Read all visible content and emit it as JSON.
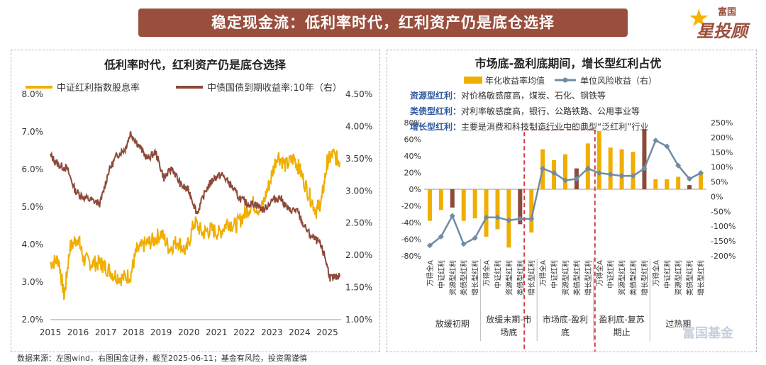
{
  "banner": {
    "title": "稳定现金流：低利率时代，红利资产仍是底仓选择"
  },
  "logo": {
    "line1": "富国",
    "line2": "星投顾"
  },
  "watermark": "富国基金",
  "footer": "数据来源：左图wind，右图国金证券，截至2025-06-11；基金有风险，投资需谨慎",
  "colors": {
    "gold": "#f0ae00",
    "brown": "#8c4a3a",
    "steel": "#6f8ca6",
    "banner": "#9a4f3e",
    "dash": "#d04040"
  },
  "chart_data": [
    {
      "type": "line",
      "title": "低利率时代，红利资产仍是底仓选择",
      "series": [
        {
          "name": "中证红利指数股息率",
          "axis": "left",
          "x": [
            2015.0,
            2015.3,
            2015.5,
            2015.7,
            2016.0,
            2016.2,
            2016.5,
            2016.8,
            2017.0,
            2017.3,
            2017.6,
            2017.9,
            2018.1,
            2018.4,
            2018.7,
            2019.0,
            2019.3,
            2019.6,
            2019.9,
            2020.2,
            2020.5,
            2020.8,
            2021.1,
            2021.4,
            2021.7,
            2022.0,
            2022.3,
            2022.6,
            2022.9,
            2023.2,
            2023.5,
            2023.8,
            2024.0,
            2024.3,
            2024.6,
            2024.8,
            2025.0,
            2025.2,
            2025.45
          ],
          "values": [
            3.5,
            3.6,
            2.6,
            3.9,
            4.2,
            3.6,
            3.5,
            3.5,
            3.4,
            3.2,
            3.1,
            3.2,
            3.8,
            4.0,
            4.1,
            4.3,
            3.9,
            4.1,
            3.8,
            4.6,
            4.3,
            4.4,
            4.3,
            4.6,
            4.5,
            4.8,
            5.1,
            4.9,
            5.6,
            6.4,
            6.1,
            6.3,
            6.0,
            5.4,
            4.9,
            5.2,
            6.2,
            6.4,
            6.2
          ]
        },
        {
          "name": "中债国债到期收益率:10年（右）",
          "axis": "right",
          "x": [
            2015.0,
            2015.3,
            2015.6,
            2015.9,
            2016.2,
            2016.5,
            2016.8,
            2017.1,
            2017.4,
            2017.7,
            2017.9,
            2018.2,
            2018.5,
            2018.8,
            2019.1,
            2019.4,
            2019.7,
            2020.0,
            2020.3,
            2020.6,
            2020.9,
            2021.2,
            2021.5,
            2021.8,
            2022.1,
            2022.4,
            2022.7,
            2023.0,
            2023.3,
            2023.6,
            2023.9,
            2024.1,
            2024.4,
            2024.7,
            2024.9,
            2025.1,
            2025.3,
            2025.45
          ],
          "values": [
            3.55,
            3.4,
            3.35,
            3.0,
            2.9,
            2.85,
            2.8,
            3.3,
            3.55,
            3.65,
            3.9,
            3.7,
            3.5,
            3.6,
            3.2,
            3.35,
            3.1,
            3.0,
            2.65,
            3.0,
            3.2,
            3.25,
            3.1,
            2.9,
            2.8,
            2.8,
            2.7,
            2.85,
            2.9,
            2.7,
            2.7,
            2.5,
            2.3,
            2.2,
            2.0,
            1.65,
            1.65,
            1.7
          ]
        }
      ],
      "x_ticks": [
        "2015",
        "2016",
        "2017",
        "2018",
        "2019",
        "2020",
        "2021",
        "2022",
        "2023",
        "2024",
        "2025"
      ],
      "y_left_ticks": [
        "8.0%",
        "7.0%",
        "6.0%",
        "5.0%",
        "4.0%",
        "3.0%",
        "2.0%"
      ],
      "y_right_ticks": [
        "4.50%",
        "4.00%",
        "3.50%",
        "3.00%",
        "2.50%",
        "2.00%",
        "1.50%",
        "1.00%"
      ],
      "ylim_left": [
        2.0,
        8.0
      ],
      "ylim_right": [
        1.0,
        4.5
      ],
      "xlim": [
        2015.0,
        2025.5
      ]
    },
    {
      "type": "bar",
      "title": "市场底-盈利底期间，增长型红利占优",
      "legend": [
        "年化收益率均值",
        "单位风险收益（右）"
      ],
      "annotations": [
        {
          "label": "资源型红利：",
          "text": "对价格敏感度高，煤炭、石化、钢铁等"
        },
        {
          "label": "类债型红利：",
          "text": "对利率敏感度高，银行、公路铁路、公用事业等"
        },
        {
          "label": "增长型红利：",
          "text": "主要是消费和科技制造行业中的典型“泛红利”行业"
        }
      ],
      "categories": [
        "万得全A",
        "中证红利",
        "资源型红利",
        "类债型红利",
        "增长型红利",
        "万得全A",
        "中证红利",
        "资源型红利",
        "类债型红利",
        "增长型红利",
        "万得全A",
        "中证红利",
        "资源型红利",
        "类债型红利",
        "增长型红利",
        "万得全A",
        "中证红利",
        "资源型红利",
        "类债型红利",
        "增长型红利",
        "万得全A",
        "中证红利",
        "资源型红利",
        "类债型红利",
        "增长型红利"
      ],
      "groups": [
        "放缓初期",
        "放缓末期-市场底",
        "市场底-盈利底",
        "盈利底-复苏期止",
        "过热期"
      ],
      "bar_values": [
        -38,
        -25,
        -22,
        -38,
        -35,
        -57,
        -48,
        -70,
        -42,
        -52,
        48,
        35,
        42,
        25,
        55,
        70,
        50,
        48,
        45,
        72,
        12,
        12,
        15,
        5,
        20
      ],
      "highlight_index": [
        2,
        8,
        13,
        19,
        23
      ],
      "line_values": [
        -165,
        -135,
        -65,
        -160,
        -140,
        -70,
        -70,
        -80,
        -75,
        -75,
        95,
        80,
        55,
        60,
        95,
        80,
        75,
        70,
        70,
        95,
        190,
        170,
        105,
        60,
        80
      ],
      "ylim_left": [
        -80,
        80
      ],
      "ylim_right": [
        -200,
        250
      ],
      "y_left_ticks": [
        "80%",
        "60%",
        "40%",
        "20%",
        "0%",
        "-20%",
        "-40%",
        "-60%",
        "-80%"
      ],
      "y_right_ticks": [
        "250%",
        "200%",
        "150%",
        "100%",
        "50%",
        "0%",
        "-50%",
        "-100%",
        "-150%",
        "-200%"
      ]
    }
  ]
}
